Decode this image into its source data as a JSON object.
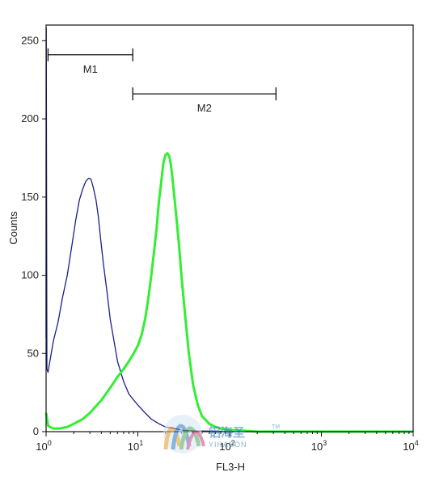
{
  "chart_data": {
    "type": "line",
    "xlabel": "FL3-H",
    "ylabel": "Counts",
    "x_scale": "log",
    "xlim": [
      1,
      10000
    ],
    "ylim": [
      0,
      260
    ],
    "y_ticks": [
      0,
      50,
      100,
      150,
      200,
      250
    ],
    "x_ticks": [
      {
        "value": 1,
        "base": "10",
        "exp": "0"
      },
      {
        "value": 10,
        "base": "10",
        "exp": "1"
      },
      {
        "value": 100,
        "base": "10",
        "exp": "2"
      },
      {
        "value": 1000,
        "base": "10",
        "exp": "3"
      },
      {
        "value": 10000,
        "base": "10",
        "exp": "4"
      }
    ],
    "gates": [
      {
        "label": "M1",
        "x_start": 1.05,
        "x_end": 8.8,
        "y_level": 241
      },
      {
        "label": "M2",
        "x_start": 8.8,
        "x_end": 320,
        "y_level": 216
      }
    ],
    "series": [
      {
        "color": "#1c1c8c",
        "x": [
          1,
          1.005,
          1.02,
          1.05,
          1.1,
          1.2,
          1.35,
          1.5,
          1.7,
          1.9,
          2.1,
          2.3,
          2.5,
          2.7,
          2.9,
          3.0,
          3.1,
          3.3,
          3.5,
          3.7,
          3.9,
          4.2,
          4.6,
          5.0,
          5.5,
          6.0,
          7.0,
          8.0,
          10,
          12,
          14,
          17,
          20,
          25,
          30,
          40,
          60,
          100,
          1000,
          10000
        ],
        "y": [
          60,
          258,
          40,
          38,
          45,
          58,
          70,
          85,
          100,
          118,
          135,
          148,
          155,
          160,
          162,
          162,
          161,
          155,
          148,
          138,
          125,
          108,
          90,
          72,
          58,
          45,
          32,
          24,
          17,
          12,
          8,
          5,
          3,
          2,
          1,
          0.5,
          0.3,
          0,
          0,
          0
        ]
      },
      {
        "color": "#33ee33",
        "x": [
          1,
          1.05,
          1.1,
          1.2,
          1.4,
          1.7,
          2,
          2.5,
          3,
          4,
          5,
          6,
          7,
          8,
          9,
          10,
          11,
          12,
          13,
          14,
          15,
          16,
          17,
          18,
          19,
          20,
          21,
          22,
          23,
          24,
          25,
          26,
          28,
          30,
          33,
          36,
          40,
          45,
          50,
          60,
          70,
          80,
          100,
          150,
          200,
          1000,
          10000
        ],
        "y": [
          12,
          4,
          3,
          2,
          2,
          3,
          5,
          8,
          12,
          20,
          28,
          35,
          40,
          45,
          50,
          55,
          62,
          72,
          85,
          100,
          115,
          130,
          148,
          160,
          172,
          177,
          178,
          176,
          170,
          160,
          150,
          140,
          120,
          98,
          72,
          50,
          30,
          17,
          10,
          5,
          3,
          2,
          1,
          0.5,
          0,
          0,
          0
        ]
      }
    ]
  },
  "watermark": {
    "cn_text": "铝海圣",
    "en_text": "YIHASON",
    "tm": "TM"
  }
}
